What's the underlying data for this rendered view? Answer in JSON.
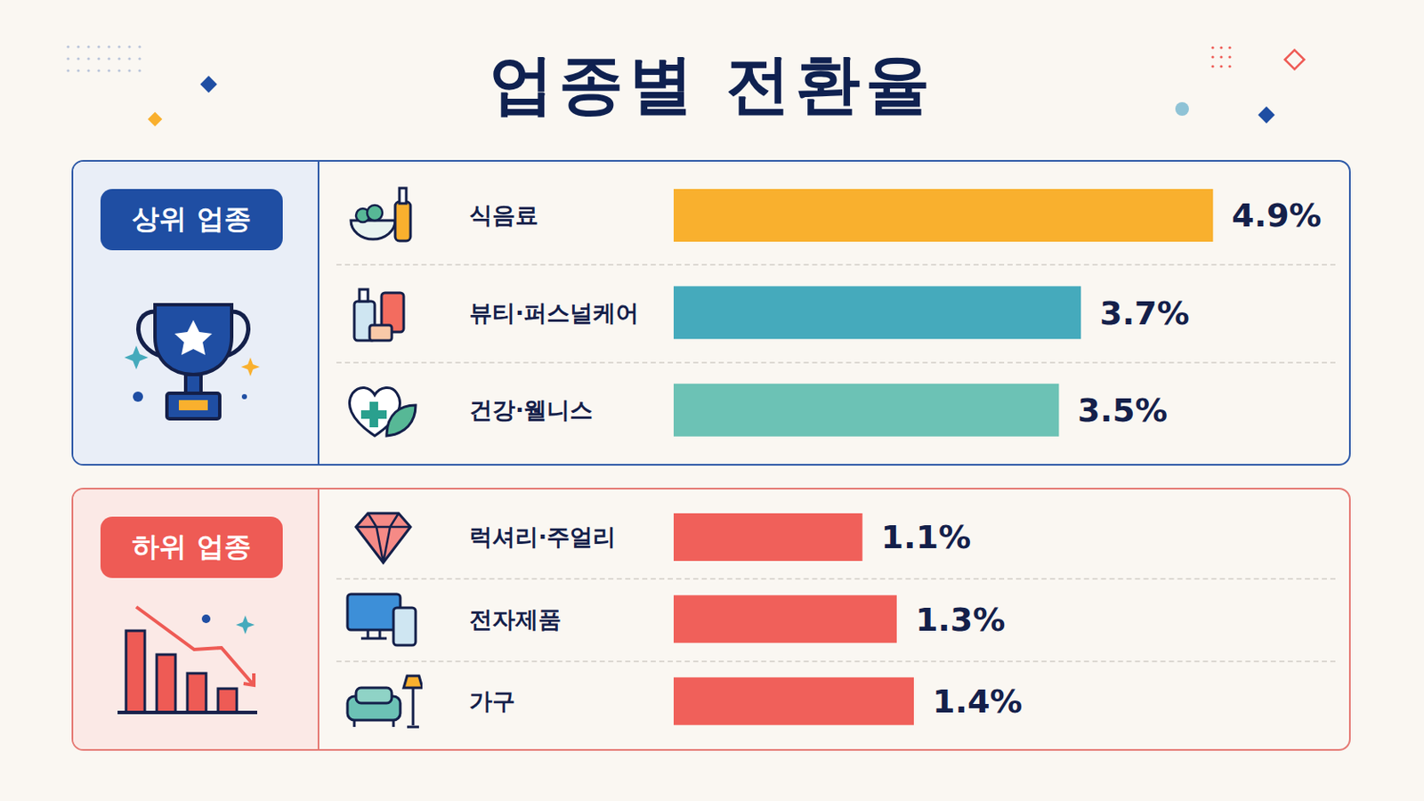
{
  "title": "업종별 전환율",
  "chart_data": [
    {
      "type": "bar",
      "title": "상위 업종",
      "orientation": "horizontal",
      "categories": [
        "식음료",
        "뷰티·퍼스널케어",
        "건강·웰니스"
      ],
      "values": [
        4.9,
        3.7,
        3.5
      ],
      "value_labels": [
        "4.9%",
        "3.7%",
        "3.5%"
      ],
      "colors": [
        "#f9b02e",
        "#45aabc",
        "#6cc2b5"
      ],
      "xlim": [
        0,
        5.3
      ],
      "data_labels": true,
      "tick_labels": false,
      "grid": false
    },
    {
      "type": "bar",
      "title": "하위 업종",
      "orientation": "horizontal",
      "categories": [
        "럭셔리·주얼리",
        "전자제품",
        "가구"
      ],
      "values": [
        1.1,
        1.3,
        1.4
      ],
      "value_labels": [
        "1.1%",
        "1.3%",
        "1.4%"
      ],
      "colors": [
        "#f0605a",
        "#f0605a",
        "#f0605a"
      ],
      "xlim": [
        0,
        3.4
      ],
      "data_labels": true,
      "tick_labels": false,
      "grid": false
    }
  ]
}
